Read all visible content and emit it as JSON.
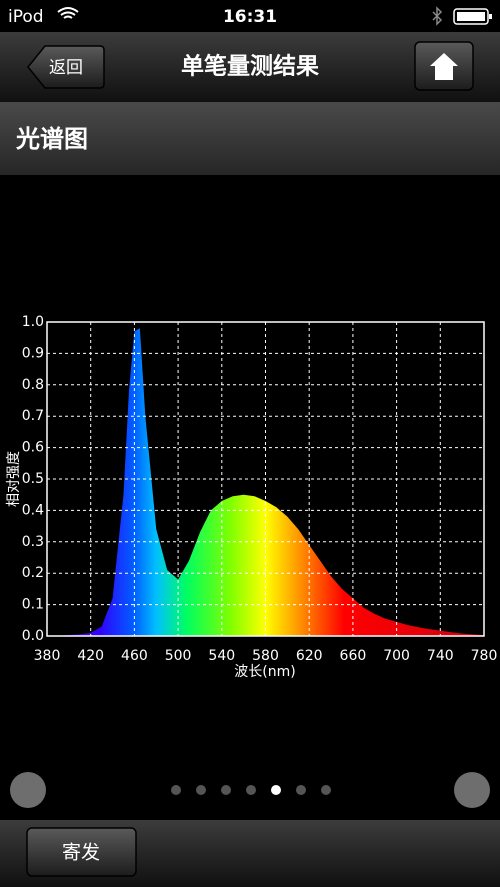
{
  "status_bar": {
    "device": "iPod",
    "time": "16:31"
  },
  "nav_bar": {
    "back_button": "返回",
    "title": "单笔量测结果"
  },
  "section": {
    "title": "光谱图"
  },
  "chart_data": {
    "type": "area",
    "x_label": "波长(nm)",
    "y_label": "相对强度",
    "x": [
      380,
      390,
      400,
      410,
      420,
      430,
      440,
      450,
      455,
      460,
      465,
      470,
      480,
      490,
      500,
      510,
      520,
      530,
      540,
      550,
      560,
      570,
      580,
      590,
      600,
      610,
      620,
      630,
      640,
      650,
      660,
      670,
      680,
      690,
      700,
      710,
      720,
      730,
      740,
      750,
      760,
      770,
      780
    ],
    "values": [
      0,
      0,
      0.003,
      0.005,
      0.01,
      0.03,
      0.12,
      0.45,
      0.78,
      0.97,
      0.98,
      0.7,
      0.34,
      0.21,
      0.18,
      0.24,
      0.33,
      0.4,
      0.43,
      0.445,
      0.45,
      0.445,
      0.43,
      0.41,
      0.38,
      0.34,
      0.29,
      0.24,
      0.19,
      0.15,
      0.12,
      0.09,
      0.07,
      0.055,
      0.045,
      0.035,
      0.028,
      0.022,
      0.017,
      0.012,
      0.008,
      0.005,
      0.003
    ],
    "xlim": [
      380,
      780
    ],
    "ylim": [
      0,
      1
    ],
    "xticks": [
      380,
      420,
      460,
      500,
      540,
      580,
      620,
      660,
      700,
      740,
      780
    ],
    "yticks": [
      {
        "value": 0,
        "label": "0.0"
      },
      0.1,
      0.2,
      0.3,
      0.4,
      0.5,
      0.6,
      0.7,
      0.8,
      0.9,
      {
        "value": 1,
        "label": "1.0"
      }
    ],
    "grid": true
  },
  "toolbar": {
    "button": "寄发"
  }
}
